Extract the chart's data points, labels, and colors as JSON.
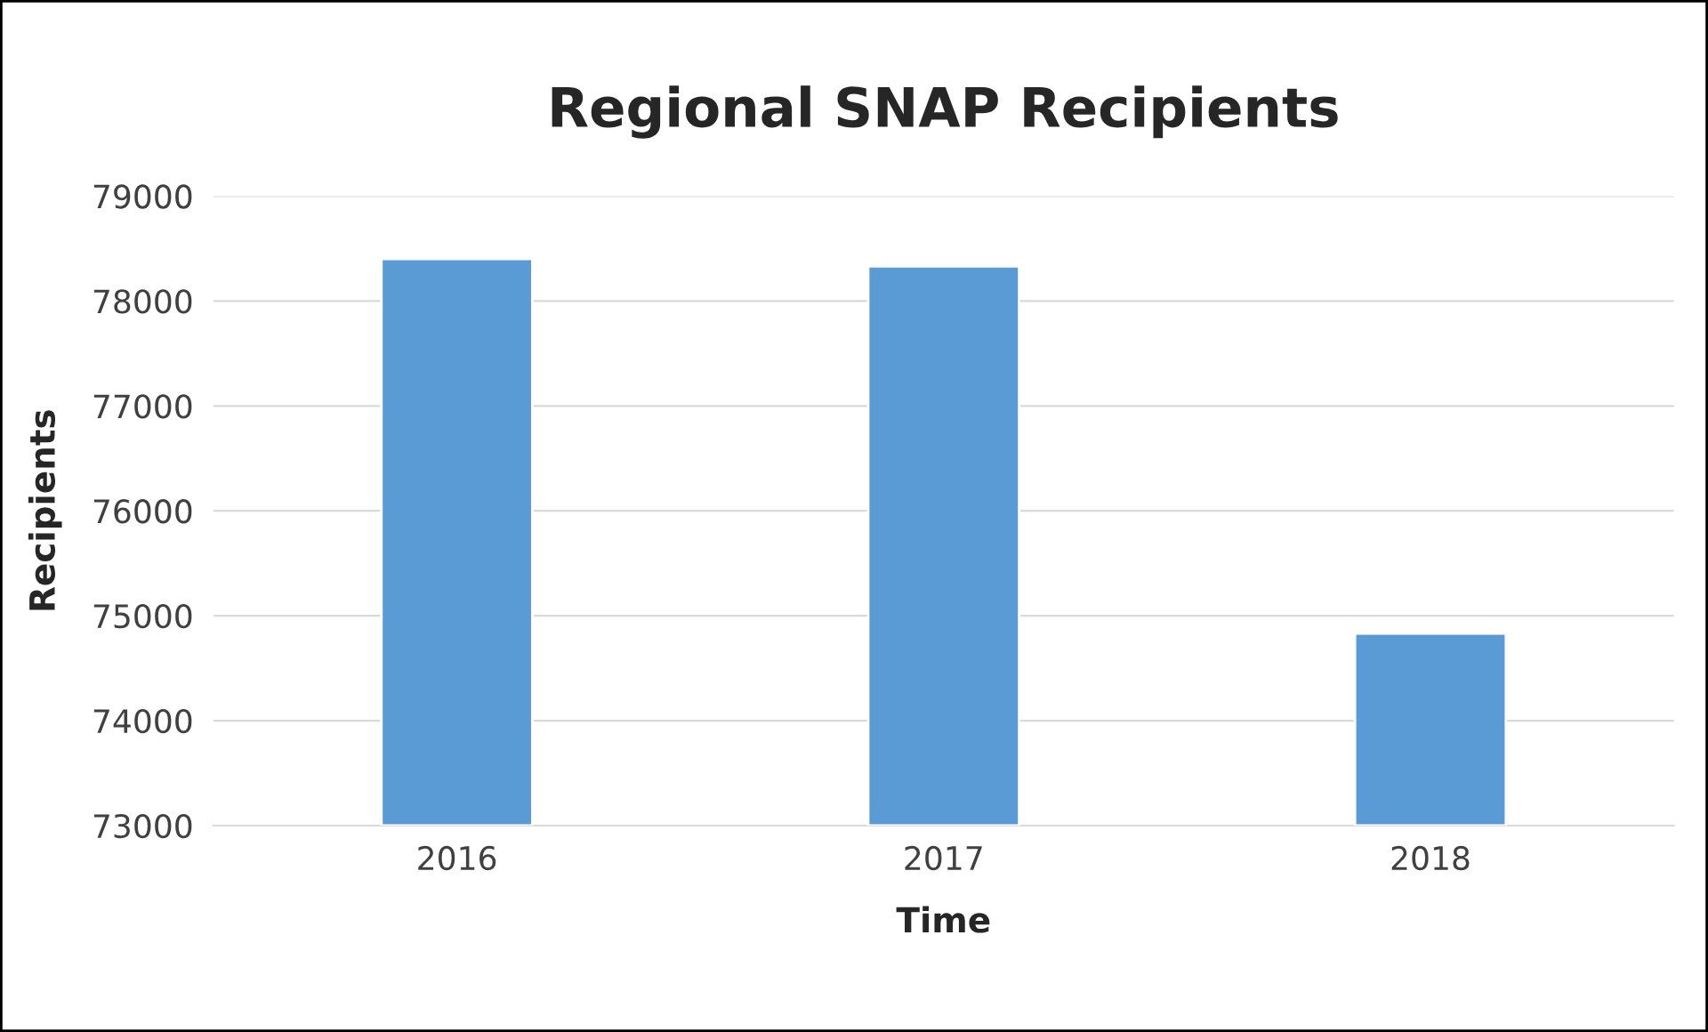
{
  "chart_data": {
    "type": "bar",
    "title": "Regional SNAP Recipients",
    "xlabel": "Time",
    "ylabel": "Recipients",
    "categories": [
      "2016",
      "2017",
      "2018"
    ],
    "values": [
      78400,
      78330,
      74830
    ],
    "color": "#5b9bd5",
    "ylim": [
      73000,
      79000
    ],
    "yticks": [
      73000,
      74000,
      75000,
      76000,
      77000,
      78000,
      79000
    ],
    "grid": "y"
  }
}
